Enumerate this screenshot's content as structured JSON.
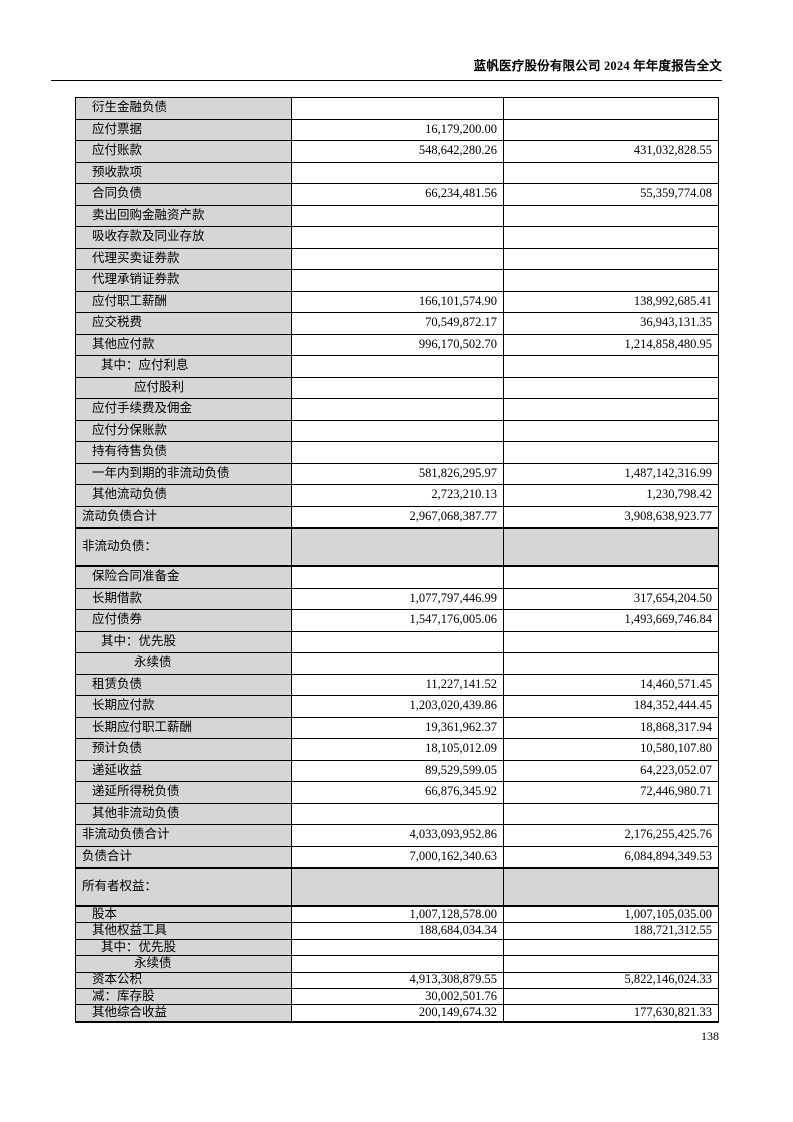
{
  "header": {
    "title": "蓝帆医疗股份有限公司 2024 年年度报告全文"
  },
  "page": {
    "number": "138"
  },
  "table": {
    "rows": [
      {
        "label": "衍生金融负债",
        "current": "",
        "previous": "",
        "indent": 1
      },
      {
        "label": "应付票据",
        "current": "16,179,200.00",
        "previous": "",
        "indent": 1
      },
      {
        "label": "应付账款",
        "current": "548,642,280.26",
        "previous": "431,032,828.55",
        "indent": 1
      },
      {
        "label": "预收款项",
        "current": "",
        "previous": "",
        "indent": 1
      },
      {
        "label": "合同负债",
        "current": "66,234,481.56",
        "previous": "55,359,774.08",
        "indent": 1
      },
      {
        "label": "卖出回购金融资产款",
        "current": "",
        "previous": "",
        "indent": 1
      },
      {
        "label": "吸收存款及同业存放",
        "current": "",
        "previous": "",
        "indent": 1
      },
      {
        "label": "代理买卖证券款",
        "current": "",
        "previous": "",
        "indent": 1
      },
      {
        "label": "代理承销证券款",
        "current": "",
        "previous": "",
        "indent": 1
      },
      {
        "label": "应付职工薪酬",
        "current": "166,101,574.90",
        "previous": "138,992,685.41",
        "indent": 1
      },
      {
        "label": "应交税费",
        "current": "70,549,872.17",
        "previous": "36,943,131.35",
        "indent": 1
      },
      {
        "label": "其他应付款",
        "current": "996,170,502.70",
        "previous": "1,214,858,480.95",
        "indent": 1
      },
      {
        "label": "其中：应付利息",
        "current": "",
        "previous": "",
        "indent": 2
      },
      {
        "label": "应付股利",
        "current": "",
        "previous": "",
        "indent": 3
      },
      {
        "label": "应付手续费及佣金",
        "current": "",
        "previous": "",
        "indent": 1
      },
      {
        "label": "应付分保账款",
        "current": "",
        "previous": "",
        "indent": 1
      },
      {
        "label": "持有待售负债",
        "current": "",
        "previous": "",
        "indent": 1
      },
      {
        "label": "一年内到期的非流动负债",
        "current": "581,826,295.97",
        "previous": "1,487,142,316.99",
        "indent": 1
      },
      {
        "label": "其他流动负债",
        "current": "2,723,210.13",
        "previous": "1,230,798.42",
        "indent": 1
      },
      {
        "label": "流动负债合计",
        "current": "2,967,068,387.77",
        "previous": "3,908,638,923.77",
        "indent": 0
      },
      {
        "label": "非流动负债：",
        "current": "",
        "previous": "",
        "indent": 0,
        "section": true,
        "size": "tall",
        "thick_top": true
      },
      {
        "label": "保险合同准备金",
        "current": "",
        "previous": "",
        "indent": 1,
        "thick_top": true
      },
      {
        "label": "长期借款",
        "current": "1,077,797,446.99",
        "previous": "317,654,204.50",
        "indent": 1
      },
      {
        "label": "应付债券",
        "current": "1,547,176,005.06",
        "previous": "1,493,669,746.84",
        "indent": 1
      },
      {
        "label": "其中：优先股",
        "current": "",
        "previous": "",
        "indent": 2
      },
      {
        "label": "永续债",
        "current": "",
        "previous": "",
        "indent": 3
      },
      {
        "label": "租赁负债",
        "current": "11,227,141.52",
        "previous": "14,460,571.45",
        "indent": 1
      },
      {
        "label": "长期应付款",
        "current": "1,203,020,439.86",
        "previous": "184,352,444.45",
        "indent": 1
      },
      {
        "label": "长期应付职工薪酬",
        "current": "19,361,962.37",
        "previous": "18,868,317.94",
        "indent": 1
      },
      {
        "label": "预计负债",
        "current": "18,105,012.09",
        "previous": "10,580,107.80",
        "indent": 1
      },
      {
        "label": "递延收益",
        "current": "89,529,599.05",
        "previous": "64,223,052.07",
        "indent": 1
      },
      {
        "label": "递延所得税负债",
        "current": "66,876,345.92",
        "previous": "72,446,980.71",
        "indent": 1
      },
      {
        "label": "其他非流动负债",
        "current": "",
        "previous": "",
        "indent": 1
      },
      {
        "label": "非流动负债合计",
        "current": "4,033,093,952.86",
        "previous": "2,176,255,425.76",
        "indent": 0
      },
      {
        "label": "负债合计",
        "current": "7,000,162,340.63",
        "previous": "6,084,894,349.53",
        "indent": 0
      },
      {
        "label": "所有者权益：",
        "current": "",
        "previous": "",
        "indent": 0,
        "section": true,
        "size": "tall",
        "thick_top": true
      },
      {
        "label": "股本",
        "current": "1,007,128,578.00",
        "previous": "1,007,105,035.00",
        "indent": 1,
        "size": "short",
        "thick_top": true
      },
      {
        "label": "其他权益工具",
        "current": "188,684,034.34",
        "previous": "188,721,312.55",
        "indent": 1,
        "size": "short"
      },
      {
        "label": "其中：优先股",
        "current": "",
        "previous": "",
        "indent": 2,
        "size": "short"
      },
      {
        "label": "永续债",
        "current": "",
        "previous": "",
        "indent": 3,
        "size": "short"
      },
      {
        "label": "资本公积",
        "current": "4,913,308,879.55",
        "previous": "5,822,146,024.33",
        "indent": 1,
        "size": "short"
      },
      {
        "label": "减：库存股",
        "current": "30,002,501.76",
        "previous": "",
        "indent": 1,
        "size": "short"
      },
      {
        "label": "其他综合收益",
        "current": "200,149,674.32",
        "previous": "177,630,821.33",
        "indent": 1,
        "size": "short"
      }
    ]
  }
}
